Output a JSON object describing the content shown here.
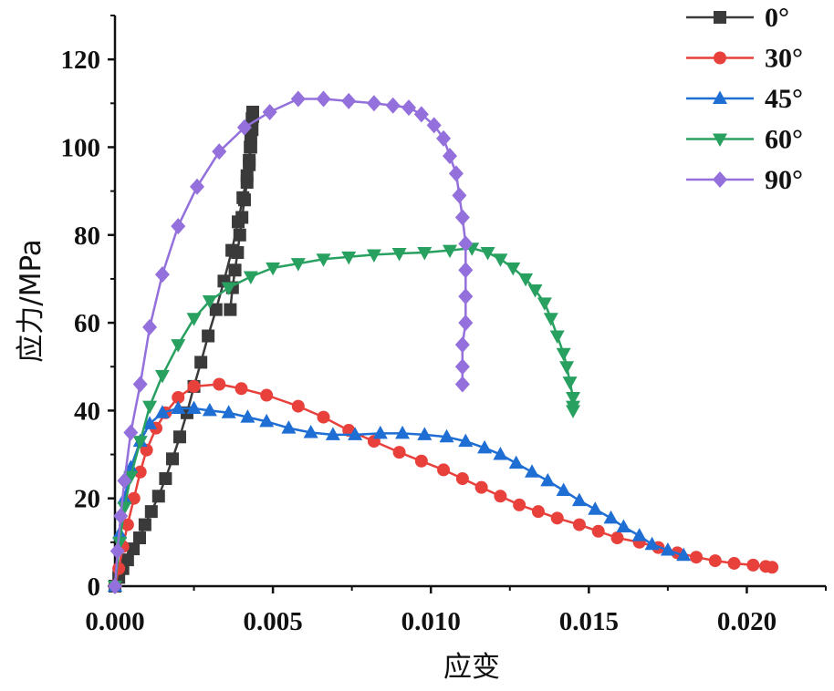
{
  "chart_data": {
    "type": "line",
    "xlabel": "应变",
    "ylabel": "应力/MPa",
    "xlim": [
      0,
      0.0225
    ],
    "ylim": [
      0,
      130
    ],
    "xticks": [
      "0.000",
      "0.005",
      "0.010",
      "0.015",
      "0.020"
    ],
    "xtick_values": [
      0,
      0.005,
      0.01,
      0.015,
      0.02
    ],
    "yticks": [
      "0",
      "20",
      "40",
      "60",
      "80",
      "100",
      "120"
    ],
    "ytick_values": [
      0,
      20,
      40,
      60,
      80,
      100,
      120
    ],
    "grid": false,
    "legend_position": "top-right",
    "series": [
      {
        "name": "0°",
        "color": "#3a3a3a",
        "marker": "square",
        "x": [
          0,
          0.00012,
          0.00025,
          0.0004,
          0.00058,
          0.00078,
          0.00095,
          0.00115,
          0.00138,
          0.0016,
          0.00182,
          0.00205,
          0.00228,
          0.0025,
          0.00272,
          0.00295,
          0.0032,
          0.00345,
          0.0037,
          0.0039,
          0.00405,
          0.00418,
          0.00425,
          0.00428,
          0.0043,
          0.00432,
          0.00434,
          0.00436,
          0.00436,
          0.00434,
          0.0043,
          0.00425,
          0.00418,
          0.0041,
          0.00402,
          0.00395,
          0.00388,
          0.0038,
          0.00372,
          0.00365
        ],
        "y": [
          0,
          2,
          4,
          6,
          8.5,
          11,
          14,
          17,
          20.5,
          24.5,
          29,
          34,
          39.5,
          45.5,
          51,
          57,
          63,
          69.5,
          76.5,
          83,
          88.5,
          93.5,
          97,
          100,
          102.5,
          104.5,
          106.5,
          108,
          107,
          104,
          100,
          96,
          92,
          88,
          84,
          80,
          76,
          72,
          68,
          63
        ]
      },
      {
        "name": "30°",
        "color": "#e8413c",
        "marker": "circle",
        "x": [
          0,
          0.00012,
          0.00025,
          0.0004,
          0.0006,
          0.0008,
          0.001,
          0.0013,
          0.0016,
          0.002,
          0.0025,
          0.0033,
          0.004,
          0.0048,
          0.0058,
          0.0066,
          0.0074,
          0.0082,
          0.009,
          0.0097,
          0.0104,
          0.011,
          0.0116,
          0.0122,
          0.0128,
          0.0134,
          0.014,
          0.0147,
          0.0153,
          0.0159,
          0.0166,
          0.0172,
          0.0178,
          0.0184,
          0.019,
          0.0196,
          0.0202,
          0.0206,
          0.0208
        ],
        "y": [
          0,
          4,
          9,
          14,
          20,
          26,
          31,
          36,
          39.5,
          43,
          45.5,
          46,
          45,
          43.5,
          41,
          38.5,
          35.5,
          33,
          30.5,
          28.5,
          26.5,
          24.5,
          22.5,
          20.5,
          18.5,
          17,
          15.5,
          14,
          12.5,
          11,
          10,
          8.8,
          7.6,
          6.6,
          5.8,
          5.2,
          4.8,
          4.5,
          4.3
        ]
      },
      {
        "name": "45°",
        "color": "#1f6ed4",
        "marker": "triangle-up",
        "x": [
          0,
          0.00015,
          0.0003,
          0.0005,
          0.0008,
          0.0011,
          0.0015,
          0.002,
          0.0025,
          0.003,
          0.0036,
          0.0042,
          0.0048,
          0.0055,
          0.0062,
          0.0069,
          0.0076,
          0.0084,
          0.0091,
          0.0098,
          0.0105,
          0.0111,
          0.0117,
          0.0122,
          0.0127,
          0.0132,
          0.0137,
          0.0142,
          0.0147,
          0.0152,
          0.0157,
          0.0161,
          0.0166,
          0.017,
          0.0175,
          0.018
        ],
        "y": [
          0,
          12,
          20,
          27,
          33,
          37,
          39.5,
          40.5,
          40.5,
          40,
          39.5,
          38.5,
          37.5,
          36,
          35,
          34.5,
          34.5,
          34.8,
          34.8,
          34.5,
          34,
          33,
          31.5,
          30,
          28,
          26,
          24,
          21.8,
          19.5,
          17.5,
          15.5,
          13.5,
          11.5,
          9.5,
          8.2,
          7
        ]
      },
      {
        "name": "60°",
        "color": "#28a060",
        "marker": "triangle-down",
        "x": [
          0,
          0.00015,
          0.0003,
          0.0005,
          0.0008,
          0.0011,
          0.0015,
          0.002,
          0.0025,
          0.003,
          0.0036,
          0.0043,
          0.005,
          0.0058,
          0.0066,
          0.0074,
          0.0082,
          0.009,
          0.0098,
          0.0106,
          0.0113,
          0.0118,
          0.0122,
          0.0126,
          0.013,
          0.0133,
          0.0136,
          0.0138,
          0.014,
          0.0142,
          0.0143,
          0.0144,
          0.0145,
          0.0145,
          0.0145
        ],
        "y": [
          0,
          10,
          18,
          25,
          33,
          41,
          48,
          55,
          61,
          65,
          68,
          70.5,
          72.5,
          73.5,
          74.5,
          75,
          75.5,
          75.8,
          76,
          76.5,
          77,
          76,
          74.5,
          72.5,
          70,
          67.5,
          64.5,
          61,
          57,
          53,
          50,
          46.5,
          43,
          41,
          40
        ]
      },
      {
        "name": "90°",
        "color": "#9370db",
        "marker": "diamond",
        "x": [
          0,
          8e-05,
          0.00018,
          0.0003,
          0.0005,
          0.0008,
          0.0011,
          0.0015,
          0.002,
          0.0026,
          0.0033,
          0.0041,
          0.0049,
          0.0058,
          0.0066,
          0.0074,
          0.0082,
          0.0088,
          0.0093,
          0.0097,
          0.0101,
          0.0104,
          0.0106,
          0.0108,
          0.0109,
          0.011,
          0.0111,
          0.0111,
          0.0111,
          0.0111,
          0.011,
          0.011,
          0.011
        ],
        "y": [
          0,
          8,
          16,
          24,
          35,
          46,
          59,
          71,
          82,
          91,
          99,
          104.5,
          108,
          111,
          111,
          110.5,
          110,
          109.5,
          109,
          107.5,
          105,
          102,
          98,
          94,
          89,
          84,
          78,
          72,
          66,
          60,
          55,
          50,
          46
        ]
      }
    ]
  }
}
